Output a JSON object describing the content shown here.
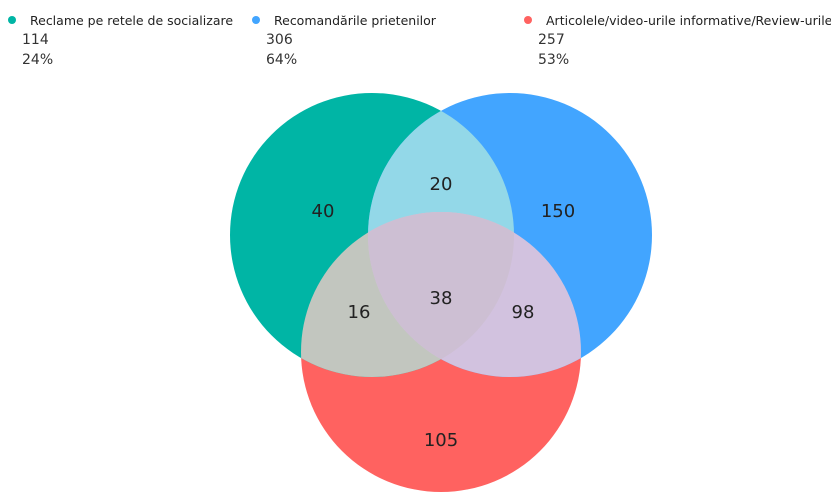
{
  "chart_data": {
    "type": "venn",
    "sets": [
      {
        "name": "Reclame pe retele de socializare",
        "count": "114",
        "percent": "24%",
        "color": "#00b5a5"
      },
      {
        "name": "Recomandările prietenilor",
        "count": "306",
        "percent": "64%",
        "color": "#42a5ff"
      },
      {
        "name": "Articolele/video-urile  informative/Review-urile",
        "count": "257",
        "percent": "53%",
        "color": "#ff6260"
      }
    ],
    "regions": [
      {
        "sets": [
          "A"
        ],
        "value": "40"
      },
      {
        "sets": [
          "B"
        ],
        "value": "150"
      },
      {
        "sets": [
          "C"
        ],
        "value": "105"
      },
      {
        "sets": [
          "A",
          "B"
        ],
        "value": "20"
      },
      {
        "sets": [
          "A",
          "C"
        ],
        "value": "16"
      },
      {
        "sets": [
          "B",
          "C"
        ],
        "value": "98"
      },
      {
        "sets": [
          "A",
          "B",
          "C"
        ],
        "value": "38"
      }
    ],
    "intersection_colors": {
      "AB": "#93d8e8",
      "AC": "#c2c6bf",
      "BC": "#d2c2df",
      "ABC": "#cdbfd3"
    }
  }
}
